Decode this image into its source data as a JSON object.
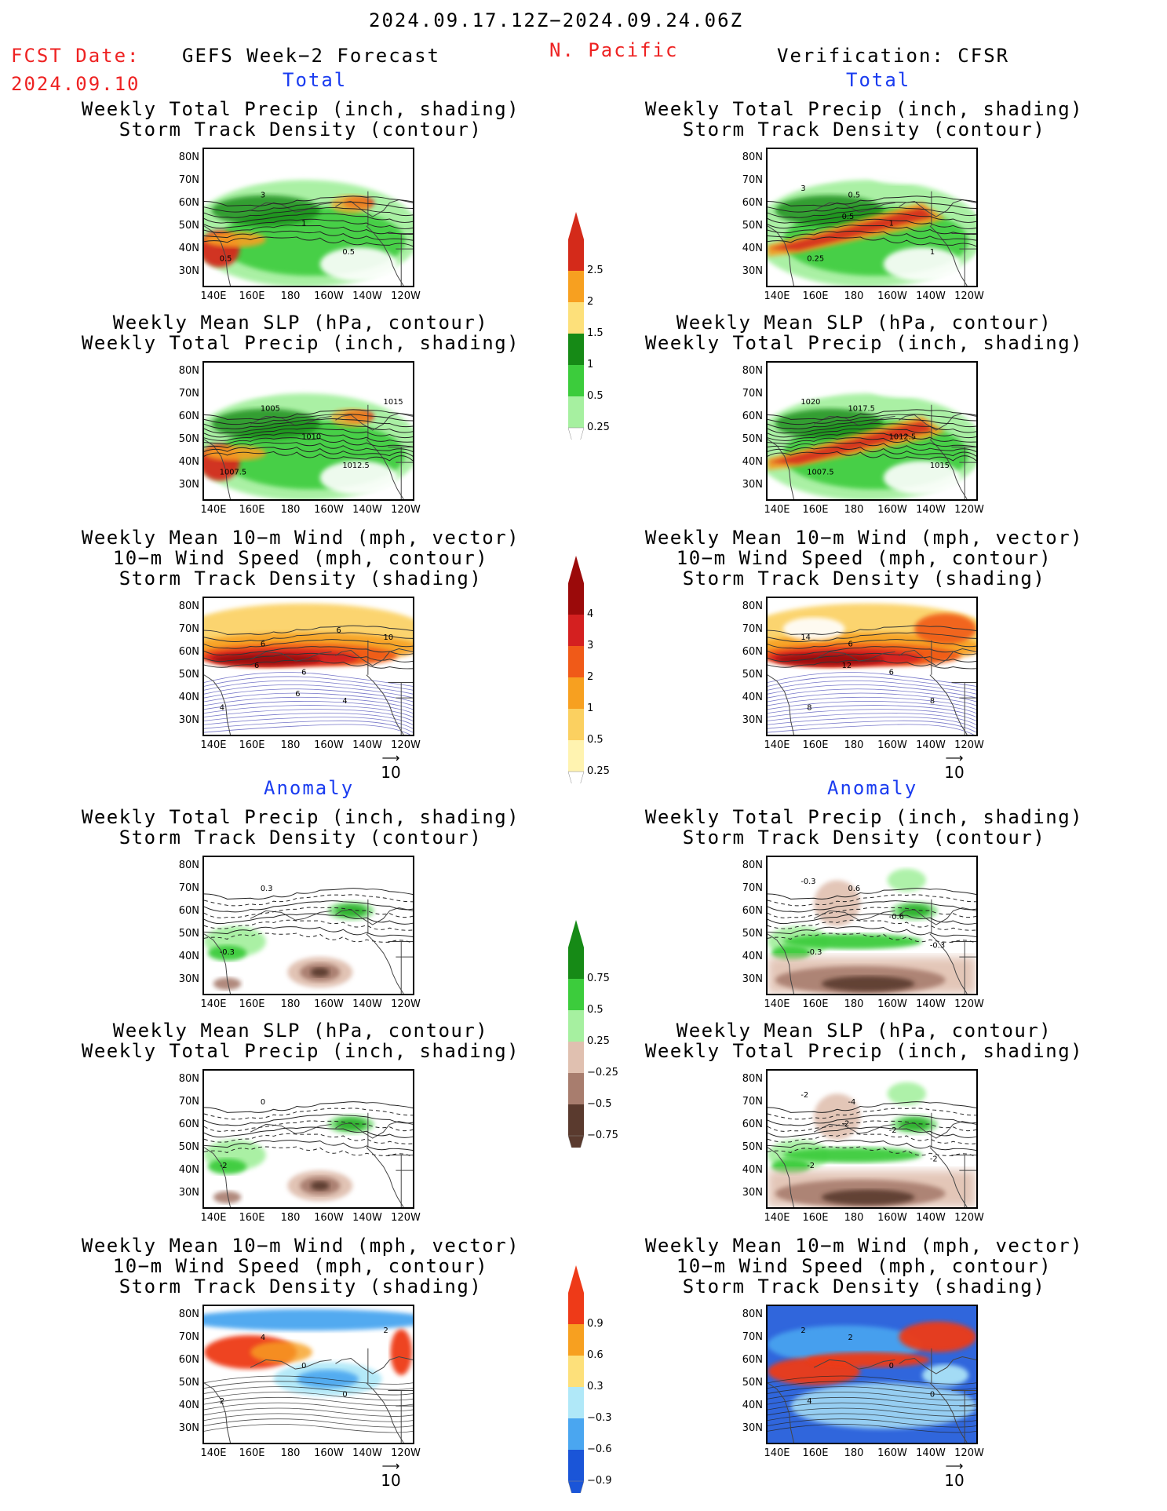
{
  "header": {
    "valid_period": "2024.09.17.12Z−2024.09.24.06Z",
    "fcst_label": "FCST Date:",
    "fcst_date": "2024.09.10",
    "forecast_name": "GEFS Week−2 Forecast",
    "region": "N. Pacific",
    "verification": "Verification: CFSR"
  },
  "sections": {
    "total": "Total",
    "anomaly": "Anomaly"
  },
  "panel_titles": {
    "precip_storm": [
      "Weekly Total Precip (inch, shading)",
      "Storm Track Density (contour)"
    ],
    "slp_precip": [
      "Weekly Mean SLP (hPa, contour)",
      "Weekly Total Precip (inch, shading)"
    ],
    "wind_storm": [
      "Weekly Mean 10−m Wind (mph, vector)",
      "10−m Wind Speed (mph, contour)",
      "Storm Track Density (shading)"
    ]
  },
  "axes": {
    "lat_labels": [
      "80N",
      "70N",
      "60N",
      "50N",
      "40N",
      "30N"
    ],
    "lon_labels": [
      "140E",
      "160E",
      "180",
      "160W",
      "140W",
      "120W"
    ]
  },
  "vector_ref": "10",
  "colorbars": {
    "precip_total": {
      "labels": [
        "2.5",
        "2",
        "1.5",
        "1",
        "0.5",
        "0.25"
      ],
      "colors": [
        "#d42a1a",
        "#f7a020",
        "#fde07a",
        "#168a16",
        "#3ccc3c",
        "#a6f0a0"
      ]
    },
    "storm_total": {
      "labels": [
        "4",
        "3",
        "2",
        "1",
        "0.5",
        "0.25"
      ],
      "colors": [
        "#9b0a0a",
        "#d42020",
        "#f05a18",
        "#f7a020",
        "#fbd060",
        "#fff3b0"
      ]
    },
    "precip_anom": {
      "labels": [
        "0.75",
        "0.5",
        "0.25",
        "−0.25",
        "−0.5",
        "−0.75"
      ],
      "colors": [
        "#168a16",
        "#3ccc3c",
        "#a6f0a0",
        "#e0c0b0",
        "#a87d6e",
        "#5a3a2e"
      ]
    },
    "storm_anom": {
      "labels": [
        "0.9",
        "0.6",
        "0.3",
        "−0.3",
        "−0.6",
        "−0.9"
      ],
      "colors": [
        "#ee3a18",
        "#f7a020",
        "#fde07a",
        "#b0e8f8",
        "#4aa6f0",
        "#1a55d8"
      ]
    }
  },
  "contour_labels": {
    "fc_t1": [
      "0.5",
      "3",
      "1",
      "0.5"
    ],
    "vf_t1": [
      "0.25",
      "0.5",
      "1",
      "1",
      "3",
      "0.5"
    ],
    "fc_t2": [
      "1007.5",
      "1005",
      "1010",
      "1012.5",
      "1015"
    ],
    "vf_t2": [
      "1007.5",
      "1017.5",
      "1012.5",
      "1015",
      "1020"
    ],
    "fc_t3": [
      "4",
      "6",
      "6",
      "4",
      "10",
      "6",
      "6",
      "6"
    ],
    "vf_t3": [
      "8",
      "6",
      "6",
      "8",
      "14",
      "12"
    ],
    "fc_a1": [
      "-0.3",
      "0.3"
    ],
    "vf_a1": [
      "-0.3",
      "0.6",
      "-0.6",
      "-0.3",
      "-0.3"
    ],
    "fc_a2": [
      "-2",
      "0"
    ],
    "vf_a2": [
      "-2",
      "-4",
      "-2",
      "-2",
      "-2",
      "-2"
    ],
    "fc_a3": [
      "2",
      "4",
      "0",
      "0",
      "2"
    ],
    "vf_a3": [
      "4",
      "2",
      "0",
      "0",
      "2"
    ]
  }
}
